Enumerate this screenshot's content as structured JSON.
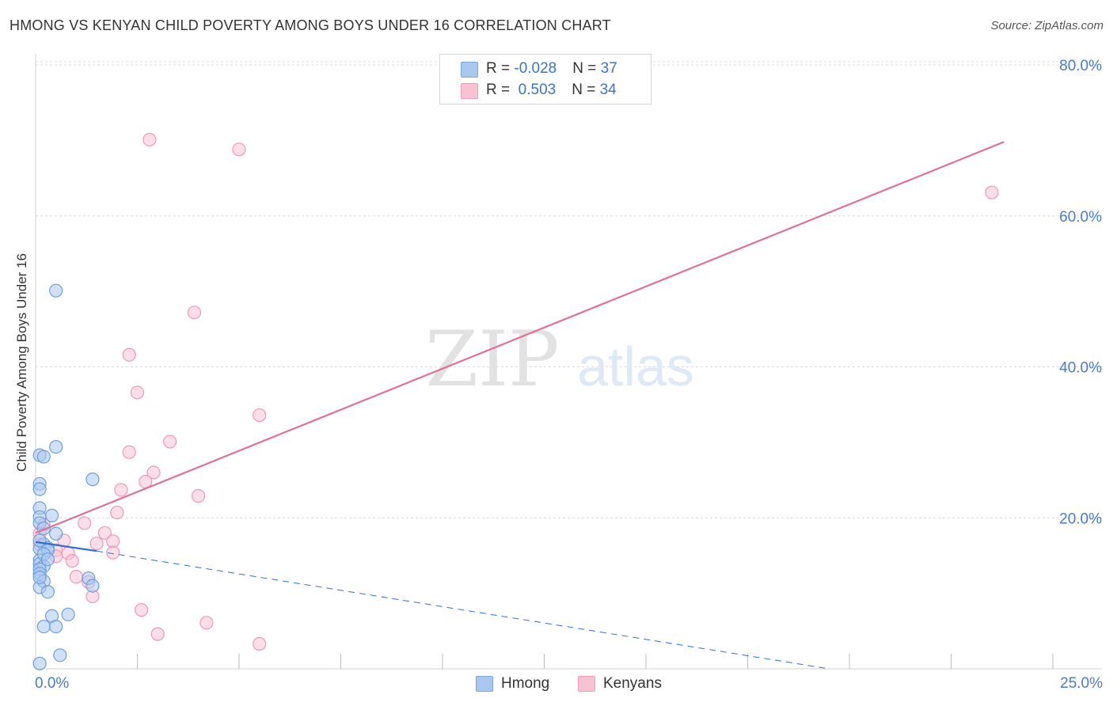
{
  "header": {
    "title": "HMONG VS KENYAN CHILD POVERTY AMONG BOYS UNDER 16 CORRELATION CHART",
    "source": "Source: ZipAtlas.com"
  },
  "legend": {
    "rows": [
      {
        "r_label": "R = ",
        "r_value": "-0.028",
        "n_label": "N = ",
        "n_value": "37",
        "color": "#a9c8f0",
        "border": "#7ca6e0"
      },
      {
        "r_label": "R = ",
        "r_value": " 0.503",
        "n_label": "N = ",
        "n_value": "34",
        "color": "#f7c3d3",
        "border": "#ee9db6"
      }
    ]
  },
  "bottom_legend": {
    "hmong": "Hmong",
    "kenyans": "Kenyans"
  },
  "watermark": {
    "zip": "ZIP",
    "atlas": "atlas"
  },
  "chart_data": {
    "type": "scatter",
    "title": "HMONG VS KENYAN CHILD POVERTY AMONG BOYS UNDER 16 CORRELATION CHART",
    "xlabel": "",
    "ylabel": "Child Poverty Among Boys Under 16",
    "xlim": [
      0,
      25
    ],
    "ylim": [
      0,
      80
    ],
    "x_tick_labels": [
      "0.0%",
      "25.0%"
    ],
    "y_ticks": [
      20,
      40,
      60,
      80
    ],
    "y_tick_labels": [
      "20.0%",
      "40.0%",
      "60.0%",
      "80.0%"
    ],
    "colors": {
      "hmong_fill": "#a9c8f0",
      "hmong_stroke": "#6f9edc",
      "hmong_line": "#2f6fcf",
      "kenyan_fill": "#f7c3d3",
      "kenyan_stroke": "#ec9ab4",
      "kenyan_line": "#e0709a",
      "grid": "#dcdcdc",
      "axis_text": "#4a7bc8"
    },
    "series": [
      {
        "name": "Hmong",
        "r": -0.028,
        "n": 37,
        "trend": {
          "x0": 0,
          "y0": 16.8,
          "x1": 1.5,
          "y1": 15.6,
          "dash_x1": 19.5,
          "dash_y1": 0
        },
        "points": [
          [
            0.1,
            28.3
          ],
          [
            0.2,
            28.1
          ],
          [
            0.5,
            29.4
          ],
          [
            1.4,
            25.1
          ],
          [
            0.1,
            24.5
          ],
          [
            0.1,
            23.8
          ],
          [
            0.1,
            21.3
          ],
          [
            0.4,
            20.3
          ],
          [
            0.1,
            20.1
          ],
          [
            0.1,
            19.3
          ],
          [
            0.5,
            17.9
          ],
          [
            0.2,
            16.5
          ],
          [
            0.3,
            16.0
          ],
          [
            0.1,
            15.9
          ],
          [
            0.3,
            15.7
          ],
          [
            0.1,
            14.4
          ],
          [
            0.1,
            13.9
          ],
          [
            0.2,
            13.6
          ],
          [
            0.1,
            13.2
          ],
          [
            0.1,
            12.6
          ],
          [
            1.3,
            12.0
          ],
          [
            0.2,
            11.6
          ],
          [
            1.4,
            11.0
          ],
          [
            0.1,
            10.8
          ],
          [
            0.3,
            10.2
          ],
          [
            0.4,
            7.0
          ],
          [
            0.8,
            7.2
          ],
          [
            0.2,
            5.6
          ],
          [
            0.5,
            5.6
          ],
          [
            0.6,
            1.8
          ],
          [
            0.1,
            0.7
          ],
          [
            0.5,
            50.1
          ],
          [
            0.1,
            17.0
          ],
          [
            0.2,
            15.2
          ],
          [
            0.1,
            12.1
          ],
          [
            0.3,
            14.5
          ],
          [
            0.2,
            18.6
          ]
        ]
      },
      {
        "name": "Kenyans",
        "r": 0.503,
        "n": 34,
        "trend": {
          "x0": 0,
          "y0": 18.0,
          "x1": 23.8,
          "y1": 69.8
        },
        "points": [
          [
            2.8,
            70.1
          ],
          [
            5.0,
            68.8
          ],
          [
            23.5,
            63.1
          ],
          [
            3.9,
            47.2
          ],
          [
            2.3,
            41.6
          ],
          [
            2.5,
            36.6
          ],
          [
            5.5,
            33.6
          ],
          [
            3.3,
            30.1
          ],
          [
            2.3,
            28.7
          ],
          [
            2.9,
            26.0
          ],
          [
            2.7,
            24.8
          ],
          [
            2.1,
            23.7
          ],
          [
            4.0,
            22.9
          ],
          [
            2.0,
            20.7
          ],
          [
            0.2,
            19.1
          ],
          [
            1.2,
            19.3
          ],
          [
            1.7,
            18.0
          ],
          [
            0.7,
            17.0
          ],
          [
            1.5,
            16.6
          ],
          [
            1.9,
            16.9
          ],
          [
            0.1,
            16.5
          ],
          [
            0.5,
            15.7
          ],
          [
            0.8,
            15.3
          ],
          [
            1.9,
            15.4
          ],
          [
            0.5,
            14.9
          ],
          [
            0.9,
            14.3
          ],
          [
            1.0,
            12.2
          ],
          [
            1.3,
            11.5
          ],
          [
            1.4,
            9.6
          ],
          [
            2.6,
            7.8
          ],
          [
            3.0,
            4.6
          ],
          [
            4.2,
            6.1
          ],
          [
            5.5,
            3.3
          ],
          [
            0.1,
            17.9
          ]
        ]
      }
    ]
  }
}
